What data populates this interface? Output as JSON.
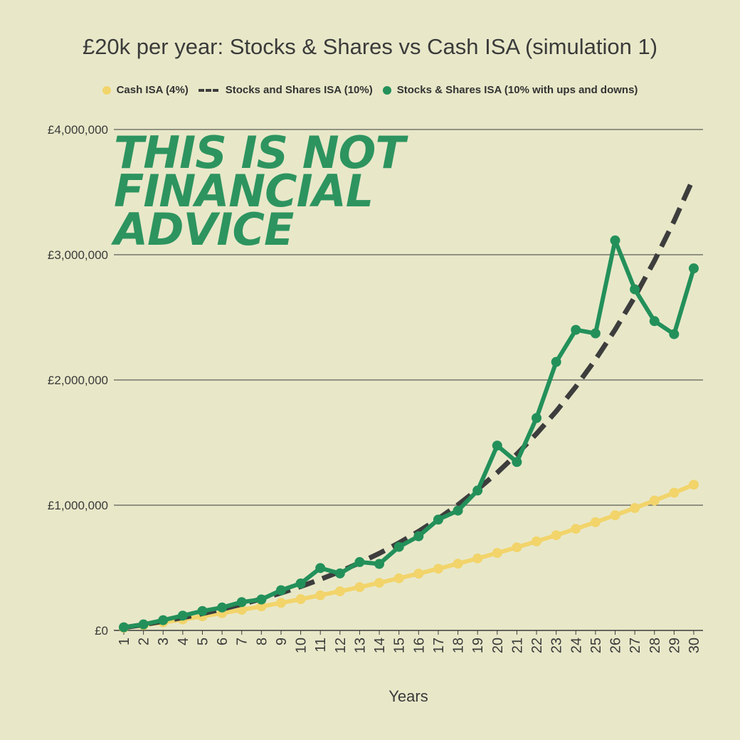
{
  "colors": {
    "background": "#e8e8c9",
    "cash": "#f2d46b",
    "stocks": "#3d3d3d",
    "volatile": "#23905a",
    "grid": "#3a3a3a"
  },
  "watermark": {
    "line1": "THIS IS NOT",
    "line2": "FINANCIAL",
    "line3": "ADVICE"
  },
  "chart_data": {
    "type": "line",
    "title": "£20k per year: Stocks & Shares vs Cash ISA (simulation 1)",
    "xlabel": "Years",
    "ylabel": "",
    "ylim": [
      0,
      4000000
    ],
    "yticks": [
      0,
      1000000,
      2000000,
      3000000,
      4000000
    ],
    "ytick_labels": [
      "£0",
      "£1,000,000",
      "£2,000,000",
      "£3,000,000",
      "£4,000,000"
    ],
    "grid": true,
    "legend_position": "top",
    "x": [
      1,
      2,
      3,
      4,
      5,
      6,
      7,
      8,
      9,
      10,
      11,
      12,
      13,
      14,
      15,
      16,
      17,
      18,
      19,
      20,
      21,
      22,
      23,
      24,
      25,
      26,
      27,
      28,
      29,
      30
    ],
    "series": [
      {
        "name": "Cash ISA (4%)",
        "style": "line-markers",
        "color": "#f2d46b",
        "values": [
          20800,
          42400,
          64900,
          88300,
          112700,
          137900,
          164300,
          191600,
          220000,
          249700,
          280400,
          312400,
          345700,
          380300,
          416400,
          453600,
          492500,
          532800,
          574700,
          618300,
          663700,
          710900,
          760100,
          811200,
          864400,
          919700,
          977200,
          1037000,
          1099100,
          1163700
        ]
      },
      {
        "name": "Stocks and Shares ISA (10%)",
        "style": "dashed",
        "color": "#3d3d3d",
        "values": [
          22000,
          46200,
          72800,
          102100,
          134300,
          169700,
          208700,
          251500,
          298700,
          350600,
          407700,
          470400,
          539500,
          615400,
          698900,
          790800,
          891900,
          1003000,
          1125300,
          1259800,
          1407800,
          1570600,
          1749600,
          1946600,
          2163200,
          2401600,
          2663700,
          2952100,
          3269300,
          3618200
        ]
      },
      {
        "name": "Stocks & Shares ISA (10% with ups and downs)",
        "style": "line-markers",
        "color": "#23905a",
        "values": [
          25000,
          48000,
          82000,
          118000,
          155000,
          183000,
          226000,
          247000,
          321000,
          375000,
          498000,
          455000,
          546000,
          531000,
          667000,
          752000,
          885000,
          957000,
          1117000,
          1476000,
          1345000,
          1696000,
          2144000,
          2400000,
          2372000,
          3114000,
          2724000,
          2470000,
          2366000,
          2891000
        ]
      }
    ]
  }
}
